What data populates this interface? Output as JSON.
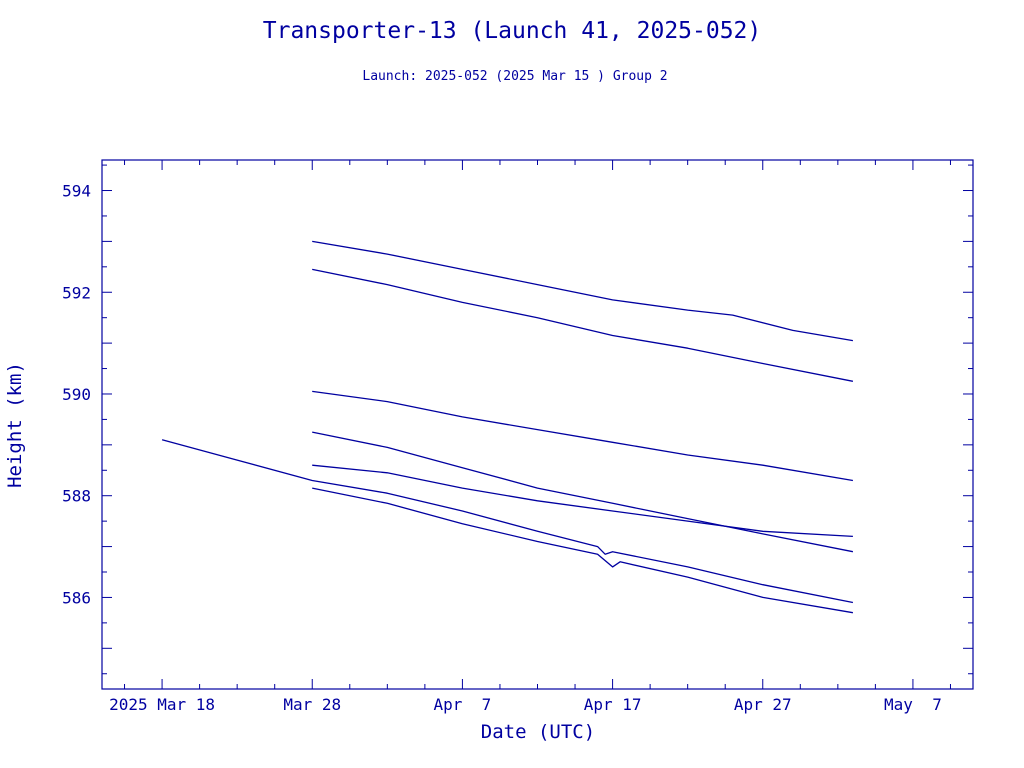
{
  "colors": {
    "ink": "#0000a0",
    "background": "#ffffff"
  },
  "chart_data": {
    "type": "line",
    "title": "Transporter-13 (Launch 41, 2025-052)",
    "subtitle": "Launch: 2025-052  (2025 Mar 15 )  Group 2",
    "xlabel": "Date (UTC)",
    "ylabel": "Height (km)",
    "x_scale": "date",
    "xlim": [
      "2025-03-14",
      "2025-05-11"
    ],
    "ylim": [
      584.2,
      594.6
    ],
    "x_ticks": [
      {
        "date": "2025-03-18",
        "label": "2025 Mar 18"
      },
      {
        "date": "2025-03-28",
        "label": "Mar 28"
      },
      {
        "date": "2025-04-07",
        "label": "Apr  7"
      },
      {
        "date": "2025-04-17",
        "label": "Apr 17"
      },
      {
        "date": "2025-04-27",
        "label": "Apr 27"
      },
      {
        "date": "2025-05-07",
        "label": "May  7"
      }
    ],
    "y_ticks": [
      {
        "value": 586,
        "label": "586"
      },
      {
        "value": 588,
        "label": "588"
      },
      {
        "value": 590,
        "label": "590"
      },
      {
        "value": 592,
        "label": "592"
      },
      {
        "value": 594,
        "label": "594"
      }
    ],
    "grid": false,
    "series": [
      {
        "x": [
          "2025-03-28",
          "2025-04-02",
          "2025-04-07",
          "2025-04-12",
          "2025-04-17",
          "2025-04-22",
          "2025-04-25",
          "2025-04-29",
          "2025-05-03"
        ],
        "y": [
          593.0,
          592.75,
          592.45,
          592.15,
          591.85,
          591.65,
          591.55,
          591.25,
          591.05
        ]
      },
      {
        "x": [
          "2025-03-28",
          "2025-04-02",
          "2025-04-07",
          "2025-04-12",
          "2025-04-17",
          "2025-04-22",
          "2025-04-27",
          "2025-05-03"
        ],
        "y": [
          592.45,
          592.15,
          591.8,
          591.5,
          591.15,
          590.9,
          590.6,
          590.25
        ]
      },
      {
        "x": [
          "2025-03-28",
          "2025-04-02",
          "2025-04-07",
          "2025-04-12",
          "2025-04-17",
          "2025-04-22",
          "2025-04-27",
          "2025-05-03"
        ],
        "y": [
          590.05,
          589.85,
          589.55,
          589.3,
          589.05,
          588.8,
          588.6,
          588.3
        ]
      },
      {
        "x": [
          "2025-03-28",
          "2025-04-02",
          "2025-04-07",
          "2025-04-12",
          "2025-04-17",
          "2025-04-22",
          "2025-04-27",
          "2025-05-03"
        ],
        "y": [
          589.25,
          588.95,
          588.55,
          588.15,
          587.85,
          587.55,
          587.25,
          586.9
        ]
      },
      {
        "x": [
          "2025-03-28",
          "2025-04-02",
          "2025-04-07",
          "2025-04-12",
          "2025-04-17",
          "2025-04-22",
          "2025-04-27",
          "2025-05-03"
        ],
        "y": [
          588.6,
          588.45,
          588.15,
          587.9,
          587.7,
          587.5,
          587.3,
          587.2
        ]
      },
      {
        "x": [
          "2025-03-18",
          "2025-03-23",
          "2025-03-28",
          "2025-04-02",
          "2025-04-07",
          "2025-04-12",
          "2025-04-16",
          "2025-04-16T12:00",
          "2025-04-17",
          "2025-04-22",
          "2025-04-27",
          "2025-05-03"
        ],
        "y": [
          589.1,
          588.7,
          588.3,
          588.05,
          587.7,
          587.3,
          587.0,
          586.85,
          586.9,
          586.6,
          586.25,
          585.9
        ]
      },
      {
        "x": [
          "2025-03-28",
          "2025-04-02",
          "2025-04-07",
          "2025-04-12",
          "2025-04-16",
          "2025-04-17",
          "2025-04-17T12:00",
          "2025-04-22",
          "2025-04-27",
          "2025-05-03"
        ],
        "y": [
          588.15,
          587.85,
          587.45,
          587.1,
          586.85,
          586.6,
          586.7,
          586.4,
          586.0,
          585.7
        ]
      }
    ]
  }
}
